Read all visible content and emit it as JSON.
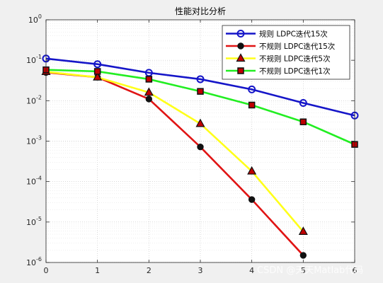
{
  "chart_data": {
    "type": "line",
    "title": "性能对比分析",
    "xlabel": "",
    "ylabel": "",
    "x": [
      0,
      1,
      2,
      3,
      4,
      5,
      6
    ],
    "xlim": [
      0,
      6
    ],
    "ylim": [
      1e-06,
      1
    ],
    "yscale": "log",
    "x_ticks": [
      "0",
      "1",
      "2",
      "3",
      "4",
      "5",
      "6"
    ],
    "y_ticks": [
      {
        "base": "10",
        "exp": "0"
      },
      {
        "base": "10",
        "exp": "-1"
      },
      {
        "base": "10",
        "exp": "-2"
      },
      {
        "base": "10",
        "exp": "-3"
      },
      {
        "base": "10",
        "exp": "-4"
      },
      {
        "base": "10",
        "exp": "-5"
      },
      {
        "base": "10",
        "exp": "-6"
      }
    ],
    "grid": true,
    "legend_position": "top-right",
    "series": [
      {
        "name": "规则 LDPC迭代15次",
        "x": [
          0,
          1,
          2,
          3,
          4,
          5,
          6
        ],
        "values": [
          0.11,
          0.08,
          0.049,
          0.034,
          0.019,
          0.0088,
          0.0043
        ],
        "color": "#1515c8",
        "marker": "circle-open"
      },
      {
        "name": "不规则 LDPC迭代15次",
        "x": [
          0,
          1,
          2,
          3,
          4,
          5
        ],
        "values": [
          0.05,
          0.038,
          0.011,
          0.00072,
          3.6e-05,
          1.5e-06
        ],
        "color": "#e01414",
        "marker": "circle-filled"
      },
      {
        "name": "不规则 LDPC迭代5次",
        "x": [
          0,
          1,
          2,
          3,
          4,
          5
        ],
        "values": [
          0.052,
          0.038,
          0.016,
          0.0027,
          0.00018,
          5.8e-06
        ],
        "color": "#ffff1a",
        "marker": "triangle"
      },
      {
        "name": "不规则 LDPC迭代1次",
        "x": [
          0,
          1,
          2,
          3,
          4,
          5,
          6
        ],
        "values": [
          0.058,
          0.053,
          0.034,
          0.017,
          0.0078,
          0.003,
          0.00083
        ],
        "color": "#22ee22",
        "marker": "square"
      }
    ]
  },
  "watermark": "CSDN @天天Matlab代码"
}
